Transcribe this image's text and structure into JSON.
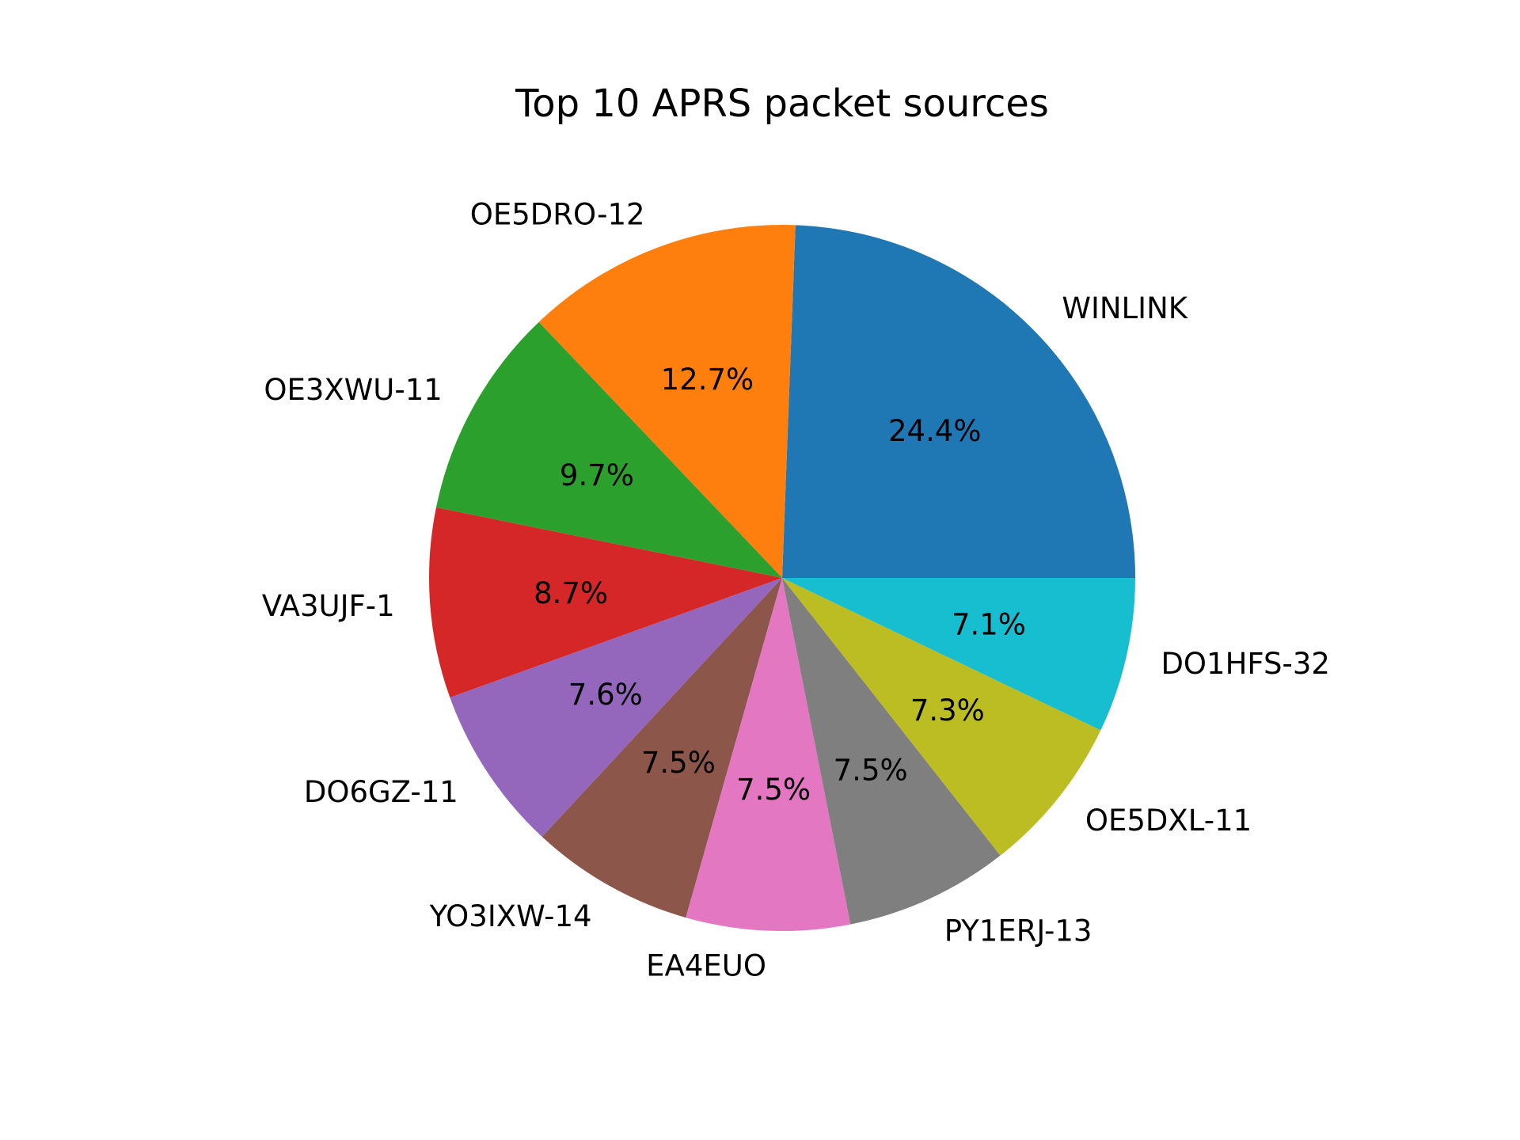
{
  "chart_data": {
    "type": "pie",
    "title": "Top 10 APRS packet sources",
    "labels": [
      "WINLINK",
      "OE5DRO-12",
      "OE3XWU-11",
      "VA3UJF-1",
      "DO6GZ-11",
      "YO3IXW-14",
      "EA4EUO",
      "PY1ERJ-13",
      "OE5DXL-11",
      "DO1HFS-32"
    ],
    "values": [
      24.4,
      12.7,
      9.7,
      8.7,
      7.6,
      7.5,
      7.5,
      7.5,
      7.3,
      7.1
    ],
    "pct_labels": [
      "24.4%",
      "12.7%",
      "9.7%",
      "8.7%",
      "7.6%",
      "7.5%",
      "7.5%",
      "7.5%",
      "7.3%",
      "7.1%"
    ],
    "colors": [
      "#1f77b4",
      "#ff7f0e",
      "#2ca02c",
      "#d62728",
      "#9467bd",
      "#8c564b",
      "#e377c2",
      "#7f7f7f",
      "#bcbd22",
      "#17becf"
    ],
    "start_angle_deg": 0,
    "direction": "counterclockwise"
  }
}
